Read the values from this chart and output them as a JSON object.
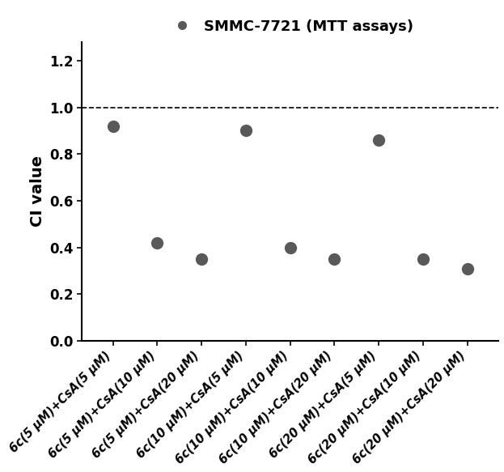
{
  "title": "SMMC-7721 (MTT assays)",
  "ylabel": "CI value",
  "x_positions": [
    1,
    2,
    3,
    4,
    5,
    6,
    7,
    8,
    9
  ],
  "y_values": [
    0.92,
    0.42,
    0.35,
    0.9,
    0.4,
    0.35,
    0.86,
    0.35,
    0.31
  ],
  "x_labels": [
    "6c(5 μM)+CsA(5 μM)",
    "6c(5 μM)+CsA(10 μM)",
    "6c(5 μM)+CsA(20 μM)",
    "6c(10 μM)+CsA(5 μM)",
    "6c(10 μM)+CsA(10 μM)",
    "6c(10 μM)+CsA(20 μM)",
    "6c(20 μM)+CsA(5 μM)",
    "6c(20 μM)+CsA(10 μM)",
    "6c(20 μM)+CsA(20 μM)"
  ],
  "marker_color": "#595959",
  "marker_size": 100,
  "dashed_line_y": 1.0,
  "ylim": [
    0.0,
    1.28
  ],
  "yticks": [
    0.0,
    0.2,
    0.4,
    0.6,
    0.8,
    1.0,
    1.2
  ],
  "background_color": "#ffffff",
  "title_fontsize": 13,
  "ylabel_fontsize": 14,
  "ytick_fontsize": 12,
  "xtick_fontsize": 10.5
}
